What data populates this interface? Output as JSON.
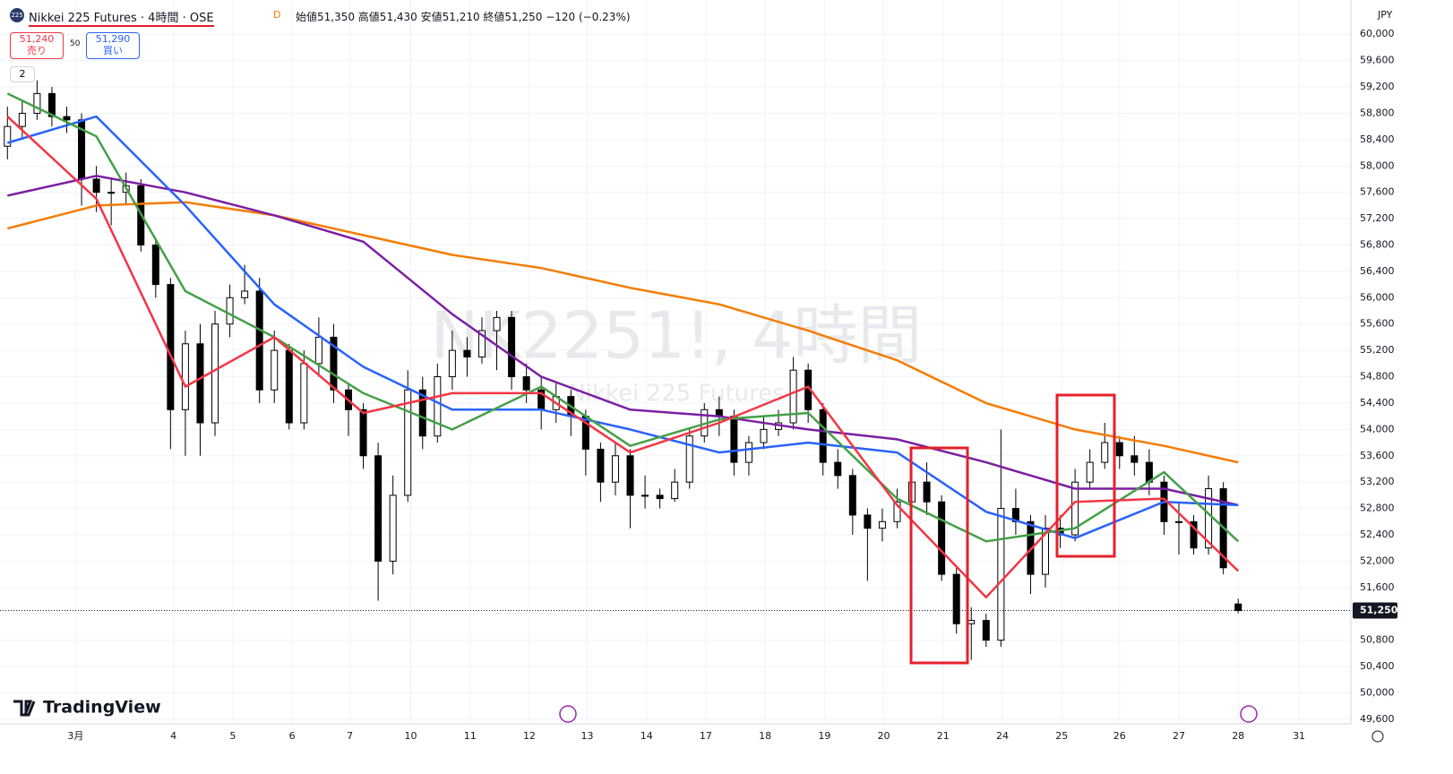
{
  "header": {
    "symbol": "Nikkei 225 Futures · 4時間 · OSE",
    "logo": "225",
    "flag": "D",
    "ohlc": "始値51,350 高値51,430 安値51,210 終値51,250 −120 (−0.23%)",
    "sell_price": "51,240",
    "sell": "売り",
    "spread": "50",
    "buy_price": "51,290",
    "buy": "買い",
    "indicators": "2",
    "watermark": "NK2251!, 4時間",
    "watermark_sub": "Nikkei 225 Futures",
    "brand": "TradingView",
    "currency": "JPY"
  },
  "chart_data": {
    "type": "candlestick",
    "candles": [
      [
        58300,
        58900,
        58100,
        58600
      ],
      [
        58600,
        59000,
        58400,
        58800
      ],
      [
        58800,
        59300,
        58700,
        59100
      ],
      [
        59100,
        59200,
        58600,
        58750
      ],
      [
        58750,
        58900,
        58500,
        58700
      ],
      [
        58700,
        58800,
        57400,
        57800
      ],
      [
        57800,
        58000,
        57300,
        57600
      ],
      [
        57600,
        57800,
        57100,
        57600
      ],
      [
        57600,
        57900,
        57400,
        57700
      ],
      [
        57700,
        57800,
        56700,
        56800
      ],
      [
        56800,
        56900,
        56000,
        56200
      ],
      [
        56200,
        56300,
        53700,
        54300
      ],
      [
        54300,
        55500,
        53600,
        55300
      ],
      [
        55300,
        55600,
        53600,
        54100
      ],
      [
        54100,
        55800,
        53900,
        55600
      ],
      [
        55600,
        56200,
        55400,
        56000
      ],
      [
        56000,
        56500,
        55900,
        56100
      ],
      [
        56100,
        56300,
        54400,
        54600
      ],
      [
        54600,
        55500,
        54400,
        55200
      ],
      [
        55200,
        55300,
        54000,
        54100
      ],
      [
        54100,
        55200,
        54000,
        55000
      ],
      [
        55000,
        55700,
        54800,
        55400
      ],
      [
        55400,
        55600,
        54400,
        54600
      ],
      [
        54600,
        54700,
        53900,
        54300
      ],
      [
        54300,
        54400,
        53400,
        53600
      ],
      [
        53600,
        53800,
        51400,
        52000
      ],
      [
        52000,
        53300,
        51800,
        53000
      ],
      [
        53000,
        54900,
        52900,
        54600
      ],
      [
        54600,
        54800,
        53700,
        53900
      ],
      [
        53900,
        55000,
        53800,
        54800
      ],
      [
        54800,
        55500,
        54600,
        55200
      ],
      [
        55200,
        55400,
        54800,
        55100
      ],
      [
        55100,
        55700,
        55000,
        55500
      ],
      [
        55500,
        55800,
        54900,
        55700
      ],
      [
        55700,
        55800,
        54600,
        54800
      ],
      [
        54800,
        55000,
        54400,
        54600
      ],
      [
        54600,
        54800,
        54000,
        54300
      ],
      [
        54300,
        54700,
        54100,
        54500
      ],
      [
        54500,
        54600,
        53900,
        54200
      ],
      [
        54200,
        54300,
        53300,
        53700
      ],
      [
        53700,
        53800,
        52900,
        53200
      ],
      [
        53200,
        53800,
        53000,
        53600
      ],
      [
        53600,
        53700,
        52500,
        53000
      ],
      [
        53000,
        53300,
        52800,
        53000
      ],
      [
        53000,
        53100,
        52800,
        52950
      ],
      [
        52950,
        53400,
        52900,
        53200
      ],
      [
        53200,
        54000,
        53100,
        53900
      ],
      [
        53900,
        54400,
        53800,
        54300
      ],
      [
        54300,
        54500,
        53900,
        54200
      ],
      [
        54200,
        54300,
        53300,
        53500
      ],
      [
        53500,
        53900,
        53300,
        53800
      ],
      [
        53800,
        54200,
        53700,
        54000
      ],
      [
        54000,
        54300,
        53900,
        54100
      ],
      [
        54100,
        55100,
        54000,
        54900
      ],
      [
        54900,
        55000,
        54100,
        54300
      ],
      [
        54300,
        54400,
        53300,
        53500
      ],
      [
        53500,
        53700,
        53100,
        53300
      ],
      [
        53300,
        53400,
        52400,
        52700
      ],
      [
        52700,
        52800,
        51700,
        52500
      ],
      [
        52500,
        52800,
        52300,
        52600
      ],
      [
        52600,
        53100,
        52500,
        52900
      ],
      [
        52900,
        53400,
        52700,
        53200
      ],
      [
        53200,
        53500,
        52700,
        52900
      ],
      [
        52900,
        53000,
        51700,
        51800
      ],
      [
        51800,
        51900,
        50900,
        51050
      ],
      [
        51050,
        51300,
        50500,
        51100
      ],
      [
        51100,
        51200,
        50700,
        50800
      ],
      [
        50800,
        54000,
        50700,
        52800
      ],
      [
        52800,
        53100,
        52400,
        52600
      ],
      [
        52600,
        52700,
        51500,
        51800
      ],
      [
        51800,
        52700,
        51600,
        52500
      ],
      [
        52500,
        52700,
        52200,
        52400
      ],
      [
        52400,
        53400,
        52300,
        53200
      ],
      [
        53200,
        53700,
        53100,
        53500
      ],
      [
        53500,
        54100,
        53400,
        53800
      ],
      [
        53800,
        53900,
        53400,
        53600
      ],
      [
        53600,
        53900,
        53300,
        53500
      ],
      [
        53500,
        53700,
        53000,
        53200
      ],
      [
        53200,
        53300,
        52400,
        52600
      ],
      [
        52600,
        52900,
        52100,
        52600
      ],
      [
        52600,
        52700,
        52100,
        52200
      ],
      [
        52200,
        53300,
        52100,
        53100
      ],
      [
        53100,
        53200,
        51800,
        51900
      ],
      [
        51350,
        51430,
        51210,
        51250
      ]
    ],
    "up_color": "#ffffff",
    "down_color": "#000000",
    "series": [
      {
        "color": "#f57c00",
        "x": [
          0,
          6,
          12,
          18,
          24,
          30,
          36,
          42,
          48,
          54,
          60,
          66,
          72,
          78,
          83
        ],
        "values": [
          57050,
          57400,
          57450,
          57250,
          56950,
          56650,
          56450,
          56150,
          55900,
          55500,
          55050,
          54400,
          54000,
          53750,
          53500
        ]
      },
      {
        "color": "#7b1fa2",
        "x": [
          0,
          6,
          12,
          18,
          24,
          30,
          36,
          42,
          48,
          54,
          60,
          66,
          72,
          78,
          83
        ],
        "values": [
          57550,
          57850,
          57600,
          57250,
          56850,
          55750,
          54800,
          54300,
          54200,
          54000,
          53850,
          53500,
          53100,
          53100,
          52850
        ]
      },
      {
        "color": "#2962ff",
        "x": [
          0,
          6,
          12,
          18,
          24,
          30,
          36,
          42,
          48,
          54,
          60,
          66,
          72,
          78,
          83
        ],
        "values": [
          58350,
          58750,
          57400,
          55900,
          54950,
          54300,
          54300,
          54000,
          53650,
          53800,
          53650,
          52750,
          52350,
          52900,
          52850
        ]
      },
      {
        "color": "#43a047",
        "x": [
          0,
          6,
          12,
          18,
          24,
          30,
          36,
          42,
          48,
          54,
          60,
          66,
          72,
          78,
          83
        ],
        "values": [
          59100,
          58450,
          56100,
          55400,
          54550,
          54000,
          54650,
          53750,
          54150,
          54250,
          52950,
          52300,
          52500,
          53350,
          52300
        ]
      },
      {
        "color": "#f23645",
        "x": [
          0,
          6,
          12,
          18,
          24,
          30,
          36,
          42,
          48,
          54,
          60,
          66,
          72,
          78,
          83
        ],
        "values": [
          58750,
          57500,
          54650,
          55400,
          54250,
          54550,
          54550,
          53650,
          54100,
          54650,
          52850,
          51450,
          52900,
          52950,
          51850
        ]
      }
    ],
    "xlim": [
      -0.5,
      90.6
    ],
    "ylim": [
      49530,
      60520
    ],
    "xticks": [
      {
        "value": 4.6,
        "label": "3月"
      },
      {
        "value": 11.2,
        "label": "4"
      },
      {
        "value": 15.2,
        "label": "5"
      },
      {
        "value": 19.2,
        "label": "6"
      },
      {
        "value": 23.1,
        "label": "7"
      },
      {
        "value": 27.2,
        "label": "10"
      },
      {
        "value": 31.2,
        "label": "11"
      },
      {
        "value": 35.2,
        "label": "12"
      },
      {
        "value": 39.1,
        "label": "13"
      },
      {
        "value": 43.1,
        "label": "14"
      },
      {
        "value": 47.1,
        "label": "17"
      },
      {
        "value": 51.1,
        "label": "18"
      },
      {
        "value": 55.1,
        "label": "19"
      },
      {
        "value": 59.1,
        "label": "20"
      },
      {
        "value": 63.1,
        "label": "21"
      },
      {
        "value": 67.1,
        "label": "24"
      },
      {
        "value": 71.1,
        "label": "25"
      },
      {
        "value": 75.0,
        "label": "26"
      },
      {
        "value": 79.0,
        "label": "27"
      },
      {
        "value": 83.0,
        "label": "28"
      },
      {
        "value": 87.1,
        "label": "31"
      }
    ],
    "yticks": [
      {
        "value": 60000,
        "label": "60,000"
      },
      {
        "value": 59600,
        "label": "59,600"
      },
      {
        "value": 59200,
        "label": "59,200"
      },
      {
        "value": 58800,
        "label": "58,800"
      },
      {
        "value": 58400,
        "label": "58,400"
      },
      {
        "value": 58000,
        "label": "58,000"
      },
      {
        "value": 57600,
        "label": "57,600"
      },
      {
        "value": 57200,
        "label": "57,200"
      },
      {
        "value": 56800,
        "label": "56,800"
      },
      {
        "value": 56400,
        "label": "56,400"
      },
      {
        "value": 56000,
        "label": "56,000"
      },
      {
        "value": 55600,
        "label": "55,600"
      },
      {
        "value": 55200,
        "label": "55,200"
      },
      {
        "value": 54800,
        "label": "54,800"
      },
      {
        "value": 54400,
        "label": "54,400"
      },
      {
        "value": 54000,
        "label": "54,000"
      },
      {
        "value": 53600,
        "label": "53,600"
      },
      {
        "value": 53200,
        "label": "53,200"
      },
      {
        "value": 52800,
        "label": "52,800"
      },
      {
        "value": 52400,
        "label": "52,400"
      },
      {
        "value": 52000,
        "label": "52,000"
      },
      {
        "value": 51600,
        "label": "51,600"
      },
      {
        "value": 51200,
        "label": "51,200"
      },
      {
        "value": 50800,
        "label": "50,800"
      },
      {
        "value": 50400,
        "label": "50,400"
      },
      {
        "value": 50000,
        "label": "50,000"
      },
      {
        "value": 49600,
        "label": "49,600"
      }
    ],
    "grid": true,
    "price_line": 51250,
    "price_line_label": "51,250"
  }
}
